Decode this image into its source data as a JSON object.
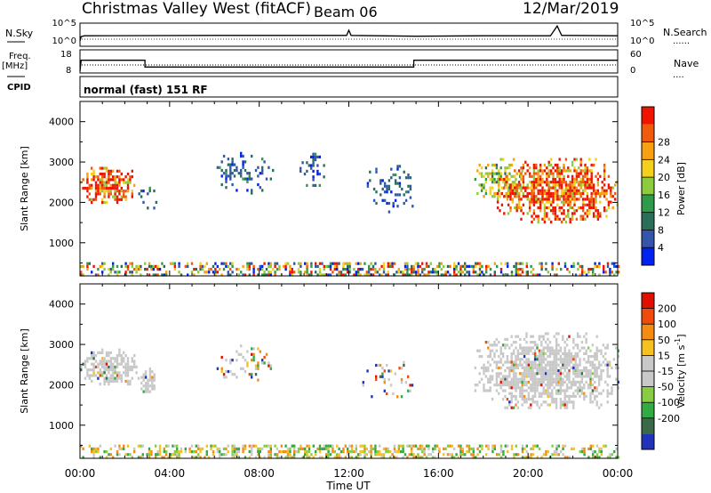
{
  "header": {
    "site": "Christmas Valley West (fitACF)",
    "beam": "Beam 06",
    "date": "12/Mar/2019"
  },
  "strip_labels": {
    "nsky": "N.Sky",
    "nsearch": "N.Search",
    "freq": "Freq.",
    "mhz": "[MHz]",
    "cpid": "CPID",
    "nave": "Nave",
    "cpid_text": "normal (fast) 151 RF",
    "dots": "......",
    "dots_short": "...."
  },
  "chart_data": [
    {
      "type": "line",
      "title": "N.Sky / N.Search",
      "y_ticks_left": [
        "10^5",
        "10^0"
      ],
      "y_ticks_right": [
        "10^5",
        "10^0"
      ],
      "series": [
        {
          "name": "N.Sky",
          "x": [
            0,
            0.05,
            0.2,
            6,
            11.9,
            12,
            12.1,
            15,
            18,
            21,
            21.3,
            21.5,
            24
          ],
          "y": [
            0,
            1,
            1.2,
            1.3,
            1.3,
            2.5,
            1.3,
            1.1,
            1.2,
            1.2,
            3.5,
            1.3,
            1.2
          ]
        }
      ]
    },
    {
      "type": "line",
      "title": "Freq. / Nave",
      "y_ticks_left": [
        "18",
        "8"
      ],
      "y_ticks_right": [
        "60",
        "0"
      ],
      "series": [
        {
          "name": "Freq.",
          "x": [
            0,
            0.05,
            2.9,
            2.9,
            14.9,
            14.9,
            24
          ],
          "y": [
            8,
            14.5,
            14.5,
            10.5,
            10.5,
            14.5,
            14.5
          ]
        }
      ]
    },
    {
      "type": "heatmap",
      "title": "",
      "xlabel": "Time UT",
      "ylabel": "Slant Range [km]",
      "xlim": [
        0,
        24
      ],
      "ylim": [
        180,
        4500
      ],
      "x_ticks": [
        "00:00",
        "04:00",
        "08:00",
        "12:00",
        "16:00",
        "20:00",
        "00:00"
      ],
      "y_ticks": [
        1000,
        2000,
        3000,
        4000
      ],
      "colorbar": {
        "label": "Power [dB]",
        "ticks": [
          4,
          8,
          12,
          16,
          20,
          24,
          28
        ],
        "colors": [
          "#0022ee",
          "#3355aa",
          "#2a6e5a",
          "#2e9a4a",
          "#8ccc3c",
          "#f4d01c",
          "#f6a012",
          "#f05a0c",
          "#ee1400"
        ]
      },
      "regions": [
        {
          "t": [
            0.0,
            2.4
          ],
          "r": [
            2000,
            2950
          ],
          "level": "high"
        },
        {
          "t": [
            2.6,
            3.4
          ],
          "r": [
            1700,
            2600
          ],
          "level": "low"
        },
        {
          "t": [
            6.0,
            8.6
          ],
          "r": [
            2200,
            3250
          ],
          "level": "low"
        },
        {
          "t": [
            9.8,
            11.0
          ],
          "r": [
            2400,
            3300
          ],
          "level": "low"
        },
        {
          "t": [
            12.8,
            15.0
          ],
          "r": [
            1800,
            3000
          ],
          "level": "low"
        },
        {
          "t": [
            17.6,
            19.8
          ],
          "r": [
            2100,
            3100
          ],
          "level": "mid"
        },
        {
          "t": [
            18.6,
            24.0
          ],
          "r": [
            1500,
            3100
          ],
          "level": "high"
        },
        {
          "t": [
            0.0,
            24.0
          ],
          "r": [
            180,
            520
          ],
          "level": "mixed"
        }
      ]
    },
    {
      "type": "heatmap",
      "title": "",
      "xlabel": "Time UT",
      "ylabel": "Slant Range [km]",
      "xlim": [
        0,
        24
      ],
      "ylim": [
        180,
        4500
      ],
      "x_ticks": [
        "00:00",
        "04:00",
        "08:00",
        "12:00",
        "16:00",
        "20:00",
        "00:00"
      ],
      "y_ticks": [
        1000,
        2000,
        3000,
        4000
      ],
      "colorbar": {
        "label": "Velocity [m s^-1]",
        "label_pre": "Velocity [m s",
        "label_sup": "-1",
        "label_post": "]",
        "ticks": [
          200,
          100,
          50,
          15,
          -15,
          -50,
          -100,
          -200
        ],
        "colors": [
          "#2233bb",
          "#3a6a48",
          "#33aa44",
          "#88cc44",
          "#c8c8c8",
          "#c8c8c8",
          "#f4c022",
          "#f48c14",
          "#f04a0c",
          "#e01000"
        ]
      },
      "regions": [
        {
          "t": [
            0.0,
            2.6
          ],
          "r": [
            2000,
            2900
          ],
          "level": "gs"
        },
        {
          "t": [
            2.7,
            3.4
          ],
          "r": [
            1800,
            2500
          ],
          "level": "gs"
        },
        {
          "t": [
            6.0,
            8.6
          ],
          "r": [
            2100,
            3000
          ],
          "level": "v"
        },
        {
          "t": [
            12.6,
            15.0
          ],
          "r": [
            1700,
            2800
          ],
          "level": "v"
        },
        {
          "t": [
            17.6,
            24.0
          ],
          "r": [
            1400,
            3300
          ],
          "level": "gs"
        },
        {
          "t": [
            0.0,
            24.0
          ],
          "r": [
            180,
            520
          ],
          "level": "low"
        }
      ]
    }
  ]
}
